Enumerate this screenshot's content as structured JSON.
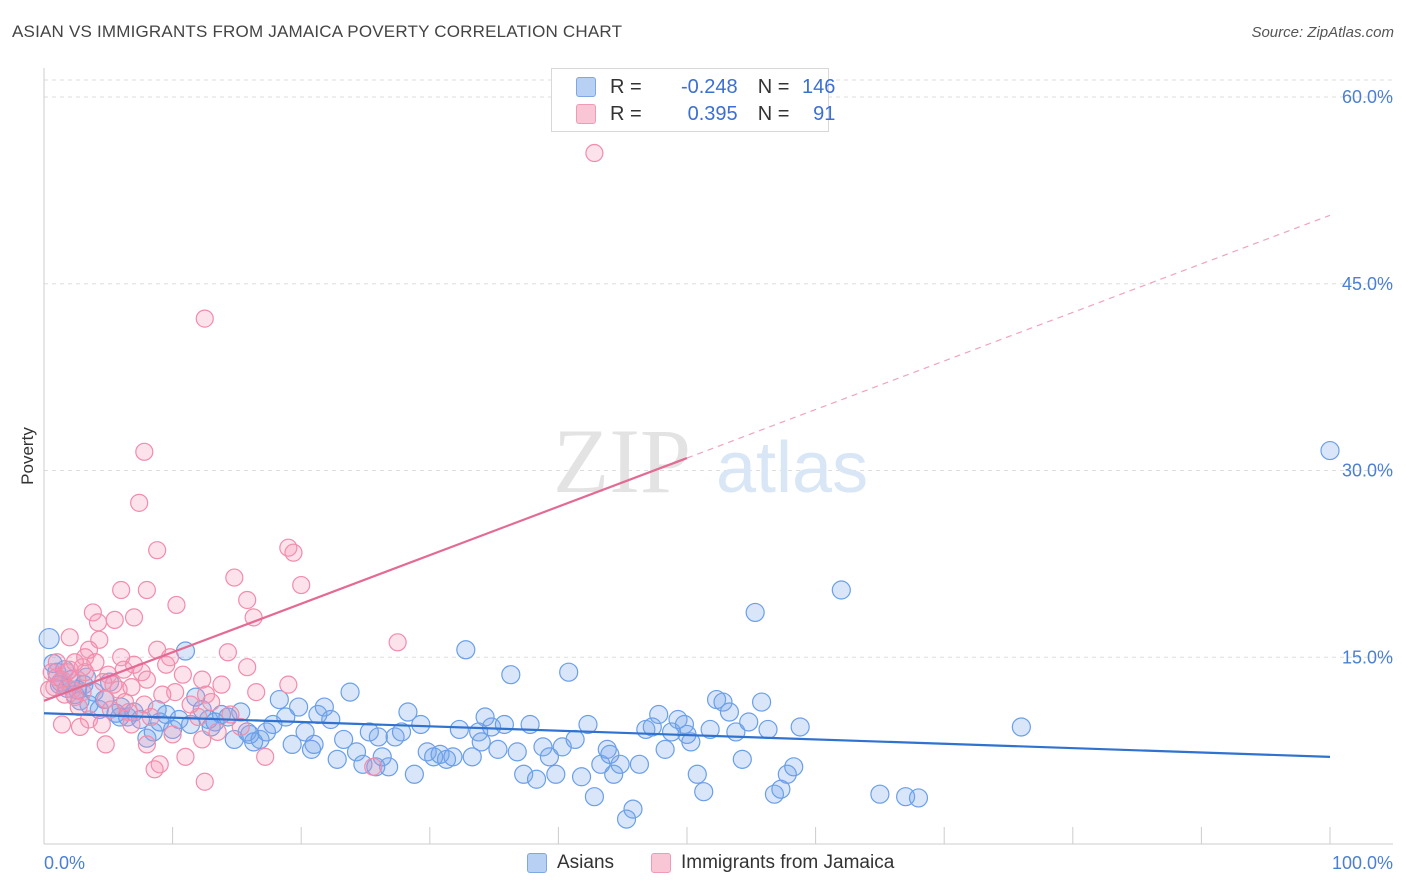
{
  "title": "ASIAN VS IMMIGRANTS FROM JAMAICA POVERTY CORRELATION CHART",
  "source": "Source: ZipAtlas.com",
  "watermark": {
    "zip": "ZIP",
    "atlas": "atlas"
  },
  "legend": {
    "series1": {
      "r_label": "R =",
      "r_value": "-0.248",
      "n_label": "N =",
      "n_value": "146"
    },
    "series2": {
      "r_label": "R =",
      "r_value": "0.395",
      "n_label": "N =",
      "n_value": "91"
    }
  },
  "colors": {
    "blue": "#6a9fe8",
    "blue_line": "#2f72d0",
    "pink": "#f28cab",
    "pink_line": "#e36a93",
    "tick_text": "#4a7fd4"
  },
  "chart_data": {
    "type": "scatter",
    "title": "ASIAN VS IMMIGRANTS FROM JAMAICA POVERTY CORRELATION CHART",
    "xlabel": "",
    "ylabel": "Poverty",
    "xlim": [
      0,
      100
    ],
    "ylim": [
      0,
      60
    ],
    "x_tick_labels": [
      "0.0%",
      "100.0%"
    ],
    "y_ticks": [
      15,
      30,
      45,
      60
    ],
    "y_tick_labels": [
      "15.0%",
      "30.0%",
      "45.0%",
      "60.0%"
    ],
    "grid": true,
    "legend_position": "bottom-center",
    "series": [
      {
        "name": "Asians",
        "R": -0.248,
        "N": 146,
        "trend": {
          "x": [
            0,
            100
          ],
          "y": [
            10.5,
            7.0
          ],
          "style": "solid"
        },
        "points": [
          [
            0.4,
            16.5
          ],
          [
            0.7,
            14.5
          ],
          [
            1.0,
            13.8
          ],
          [
            1.3,
            13.0
          ],
          [
            1.6,
            14.0
          ],
          [
            1.8,
            12.5
          ],
          [
            2.1,
            13.2
          ],
          [
            2.4,
            12.0
          ],
          [
            2.8,
            11.5
          ],
          [
            3.1,
            12.8
          ],
          [
            3.5,
            11.2
          ],
          [
            3.9,
            12.2
          ],
          [
            4.3,
            10.8
          ],
          [
            4.7,
            11.6
          ],
          [
            5.1,
            13.0
          ],
          [
            5.6,
            10.5
          ],
          [
            6.0,
            11.0
          ],
          [
            6.5,
            10.2
          ],
          [
            7.0,
            10.6
          ],
          [
            7.5,
            10.0
          ],
          [
            8.0,
            8.5
          ],
          [
            8.5,
            9.0
          ],
          [
            9.0,
            9.8
          ],
          [
            9.5,
            10.4
          ],
          [
            10.0,
            9.2
          ],
          [
            10.5,
            10.0
          ],
          [
            11.0,
            15.5
          ],
          [
            11.4,
            9.6
          ],
          [
            11.8,
            11.8
          ],
          [
            12.3,
            10.8
          ],
          [
            12.8,
            10.0
          ],
          [
            13.3,
            9.8
          ],
          [
            13.8,
            10.4
          ],
          [
            14.3,
            10.2
          ],
          [
            14.8,
            8.4
          ],
          [
            15.3,
            10.6
          ],
          [
            15.8,
            9.0
          ],
          [
            16.3,
            8.2
          ],
          [
            16.8,
            8.4
          ],
          [
            17.3,
            9.0
          ],
          [
            17.8,
            9.6
          ],
          [
            18.3,
            11.6
          ],
          [
            18.8,
            10.2
          ],
          [
            19.3,
            8.0
          ],
          [
            19.8,
            11.0
          ],
          [
            20.3,
            9.0
          ],
          [
            20.8,
            7.6
          ],
          [
            21.3,
            10.4
          ],
          [
            21.8,
            11.0
          ],
          [
            22.3,
            10.0
          ],
          [
            22.8,
            6.8
          ],
          [
            23.3,
            8.4
          ],
          [
            23.8,
            12.2
          ],
          [
            24.3,
            7.4
          ],
          [
            24.8,
            6.4
          ],
          [
            25.3,
            9.0
          ],
          [
            25.8,
            6.2
          ],
          [
            26.3,
            7.0
          ],
          [
            26.8,
            6.2
          ],
          [
            27.3,
            8.6
          ],
          [
            27.8,
            9.0
          ],
          [
            28.3,
            10.6
          ],
          [
            28.8,
            5.6
          ],
          [
            29.3,
            9.6
          ],
          [
            29.8,
            7.4
          ],
          [
            30.3,
            7.0
          ],
          [
            30.8,
            7.2
          ],
          [
            31.3,
            6.8
          ],
          [
            31.8,
            7.0
          ],
          [
            32.3,
            9.2
          ],
          [
            32.8,
            15.6
          ],
          [
            33.3,
            7.0
          ],
          [
            33.8,
            9.0
          ],
          [
            34.3,
            10.2
          ],
          [
            34.8,
            9.4
          ],
          [
            35.3,
            7.6
          ],
          [
            35.8,
            9.6
          ],
          [
            36.3,
            13.6
          ],
          [
            36.8,
            7.4
          ],
          [
            37.3,
            5.6
          ],
          [
            37.8,
            9.6
          ],
          [
            38.3,
            5.2
          ],
          [
            38.8,
            7.8
          ],
          [
            39.3,
            7.0
          ],
          [
            39.8,
            5.6
          ],
          [
            40.3,
            7.8
          ],
          [
            40.8,
            13.8
          ],
          [
            41.3,
            8.4
          ],
          [
            41.8,
            5.4
          ],
          [
            42.3,
            9.6
          ],
          [
            42.8,
            3.8
          ],
          [
            43.3,
            6.4
          ],
          [
            43.8,
            7.6
          ],
          [
            44.3,
            5.6
          ],
          [
            44.8,
            6.4
          ],
          [
            45.3,
            2.0
          ],
          [
            45.8,
            2.8
          ],
          [
            46.3,
            6.4
          ],
          [
            46.8,
            9.2
          ],
          [
            47.3,
            9.4
          ],
          [
            47.8,
            10.4
          ],
          [
            48.3,
            7.6
          ],
          [
            48.8,
            9.0
          ],
          [
            49.3,
            10.0
          ],
          [
            49.8,
            9.6
          ],
          [
            50.3,
            8.2
          ],
          [
            50.8,
            5.6
          ],
          [
            51.3,
            4.2
          ],
          [
            51.8,
            9.2
          ],
          [
            52.3,
            11.6
          ],
          [
            52.8,
            11.4
          ],
          [
            53.3,
            10.6
          ],
          [
            53.8,
            9.0
          ],
          [
            54.3,
            6.8
          ],
          [
            54.8,
            9.8
          ],
          [
            55.3,
            18.6
          ],
          [
            55.8,
            11.4
          ],
          [
            56.3,
            9.2
          ],
          [
            56.8,
            4.0
          ],
          [
            57.3,
            4.4
          ],
          [
            57.8,
            5.6
          ],
          [
            58.3,
            6.2
          ],
          [
            58.8,
            9.4
          ],
          [
            62.0,
            20.4
          ],
          [
            65.0,
            4.0
          ],
          [
            67.0,
            3.8
          ],
          [
            68.0,
            3.7
          ],
          [
            76.0,
            9.4
          ],
          [
            100.0,
            31.6
          ],
          [
            1.2,
            12.8
          ],
          [
            2.6,
            12.4
          ],
          [
            3.3,
            13.4
          ],
          [
            5.9,
            10.2
          ],
          [
            8.8,
            10.8
          ],
          [
            13.0,
            9.4
          ],
          [
            16.0,
            8.8
          ],
          [
            21.0,
            8.0
          ],
          [
            26.0,
            8.6
          ],
          [
            34.0,
            8.2
          ],
          [
            44.0,
            7.2
          ],
          [
            50.0,
            8.8
          ]
        ]
      },
      {
        "name": "Immigrants from Jamaica",
        "R": 0.395,
        "N": 91,
        "trend": {
          "x": [
            0,
            50,
            100
          ],
          "y": [
            11.5,
            31.0,
            50.5
          ],
          "style": "solid-then-dashed",
          "solid_until_x": 50
        },
        "points": [
          [
            42.8,
            55.5
          ],
          [
            12.5,
            42.2
          ],
          [
            7.8,
            31.5
          ],
          [
            7.4,
            27.4
          ],
          [
            8.8,
            23.6
          ],
          [
            19.0,
            23.8
          ],
          [
            19.4,
            23.4
          ],
          [
            14.8,
            21.4
          ],
          [
            6.0,
            20.4
          ],
          [
            8.0,
            20.4
          ],
          [
            20.0,
            20.8
          ],
          [
            10.3,
            19.2
          ],
          [
            15.8,
            19.6
          ],
          [
            3.8,
            18.6
          ],
          [
            4.2,
            17.8
          ],
          [
            5.5,
            18.0
          ],
          [
            7.0,
            18.2
          ],
          [
            16.3,
            18.2
          ],
          [
            2.0,
            16.6
          ],
          [
            4.3,
            16.4
          ],
          [
            27.5,
            16.2
          ],
          [
            3.5,
            15.6
          ],
          [
            8.8,
            15.6
          ],
          [
            14.3,
            15.4
          ],
          [
            3.2,
            15.0
          ],
          [
            6.0,
            15.0
          ],
          [
            9.8,
            15.0
          ],
          [
            1.0,
            14.6
          ],
          [
            4.0,
            14.6
          ],
          [
            7.0,
            14.4
          ],
          [
            9.5,
            14.4
          ],
          [
            15.8,
            14.2
          ],
          [
            0.6,
            13.8
          ],
          [
            1.8,
            13.8
          ],
          [
            3.2,
            13.8
          ],
          [
            5.0,
            13.6
          ],
          [
            7.6,
            13.8
          ],
          [
            1.4,
            13.2
          ],
          [
            2.6,
            13.2
          ],
          [
            4.6,
            13.0
          ],
          [
            8.0,
            13.2
          ],
          [
            12.3,
            13.2
          ],
          [
            19.0,
            12.8
          ],
          [
            0.8,
            12.6
          ],
          [
            2.2,
            12.4
          ],
          [
            3.0,
            12.2
          ],
          [
            5.8,
            12.4
          ],
          [
            6.8,
            12.6
          ],
          [
            10.2,
            12.2
          ],
          [
            12.6,
            12.0
          ],
          [
            16.5,
            12.2
          ],
          [
            2.4,
            11.8
          ],
          [
            4.8,
            11.6
          ],
          [
            6.3,
            11.4
          ],
          [
            7.8,
            11.2
          ],
          [
            13.0,
            11.4
          ],
          [
            2.7,
            11.0
          ],
          [
            5.2,
            10.8
          ],
          [
            6.6,
            10.6
          ],
          [
            8.3,
            10.2
          ],
          [
            12.0,
            10.2
          ],
          [
            14.5,
            10.4
          ],
          [
            3.5,
            10.0
          ],
          [
            4.5,
            9.6
          ],
          [
            6.8,
            9.6
          ],
          [
            13.5,
            9.0
          ],
          [
            15.3,
            9.4
          ],
          [
            1.4,
            9.6
          ],
          [
            2.8,
            9.4
          ],
          [
            10.0,
            8.8
          ],
          [
            12.3,
            8.4
          ],
          [
            4.8,
            8.0
          ],
          [
            8.0,
            8.0
          ],
          [
            17.2,
            7.0
          ],
          [
            11.0,
            7.0
          ],
          [
            9.0,
            6.4
          ],
          [
            8.6,
            6.0
          ],
          [
            12.5,
            5.0
          ],
          [
            25.6,
            6.2
          ],
          [
            1.0,
            13.4
          ],
          [
            2.0,
            14.0
          ],
          [
            3.0,
            14.2
          ],
          [
            1.6,
            12.0
          ],
          [
            5.4,
            12.8
          ],
          [
            9.2,
            12.0
          ],
          [
            11.4,
            11.2
          ],
          [
            0.4,
            12.4
          ],
          [
            2.4,
            14.6
          ],
          [
            6.2,
            14.0
          ],
          [
            10.8,
            13.6
          ],
          [
            13.8,
            12.8
          ]
        ]
      }
    ]
  }
}
